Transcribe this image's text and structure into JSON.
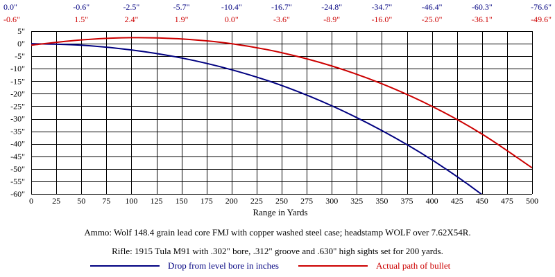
{
  "chart_data": {
    "type": "line",
    "xlabel": "Range in Yards",
    "x_ticks": [
      0,
      25,
      50,
      75,
      100,
      125,
      150,
      175,
      200,
      225,
      250,
      275,
      300,
      325,
      350,
      375,
      400,
      425,
      450,
      475,
      500
    ],
    "xlim": [
      0,
      500
    ],
    "y_tick_labels": [
      "5\"",
      "0\"",
      "-5\"",
      "-10\"",
      "-15\"",
      "-20\"",
      "-25\"",
      "-30\"",
      "-35\"",
      "-40\"",
      "-45\"",
      "-50\"",
      "-55\"",
      "-60\""
    ],
    "ylim": [
      -60,
      5
    ],
    "top_labels": {
      "drop": [
        "0.0\"",
        "-0.6\"",
        "-2.5\"",
        "-5.7\"",
        "-10.4\"",
        "-16.7\"",
        "-24.8\"",
        "-34.7\"",
        "-46.4\"",
        "-60.3\"",
        "-76.6\""
      ],
      "path": [
        "-0.6\"",
        "1.5\"",
        "2.4\"",
        "1.9\"",
        "0.0\"",
        "-3.6\"",
        "-8.9\"",
        "-16.0\"",
        "-25.0\"",
        "-36.1\"",
        "-49.6\""
      ]
    },
    "series": [
      {
        "name": "Drop from level bore in inches",
        "color": "#000080",
        "x": [
          0,
          50,
          100,
          150,
          200,
          250,
          300,
          350,
          400,
          450,
          500
        ],
        "values": [
          0.0,
          -0.6,
          -2.5,
          -5.7,
          -10.4,
          -16.7,
          -24.8,
          -34.7,
          -46.4,
          -60.3,
          -76.6
        ]
      },
      {
        "name": "Actual path of bullet",
        "color": "#cc0000",
        "x": [
          0,
          50,
          100,
          150,
          200,
          250,
          300,
          350,
          400,
          450,
          500
        ],
        "values": [
          -0.6,
          1.5,
          2.4,
          1.9,
          0.0,
          -3.6,
          -8.9,
          -16.0,
          -25.0,
          -36.1,
          -49.6
        ]
      }
    ],
    "grid": true
  },
  "notes": {
    "ammo": "Ammo:  Wolf 148.4 grain lead core FMJ with copper washed steel case; headstamp WOLF over 7.62X54R.",
    "rifle": "Rifle:  1915 Tula M91 with .302\" bore, .312\" groove and .630\" high sights set for 200 yards."
  }
}
